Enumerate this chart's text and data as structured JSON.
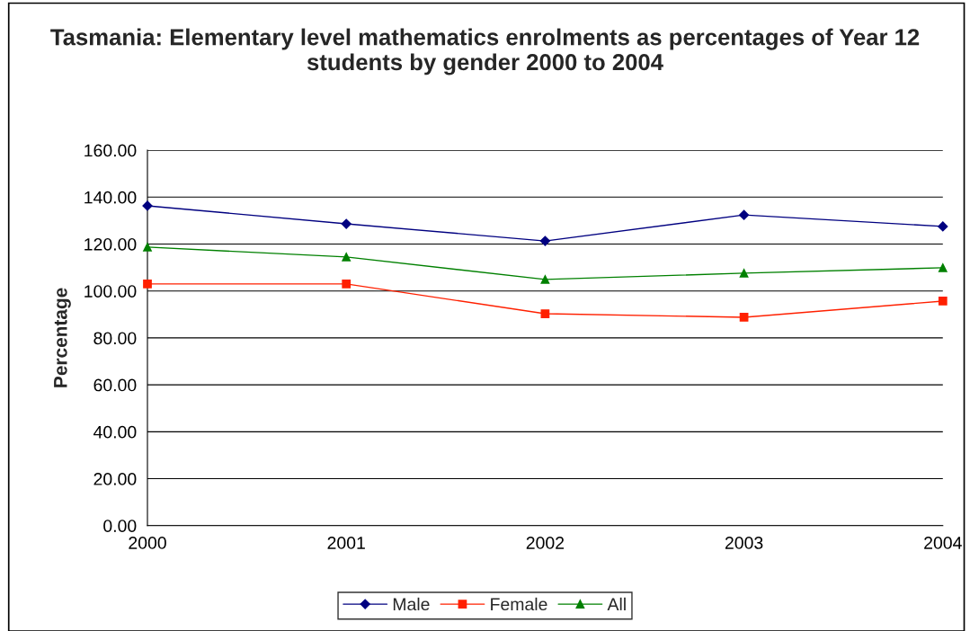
{
  "chart_data": {
    "type": "line",
    "title": "Tasmania: Elementary level mathematics enrolments as percentages of Year 12 students by gender 2000 to 2004",
    "ylabel": "Percentage",
    "categories": [
      "2000",
      "2001",
      "2002",
      "2003",
      "2004"
    ],
    "series": [
      {
        "name": "Male",
        "color": "#000080",
        "marker": "diamond",
        "values": [
          136.3,
          128.6,
          121.3,
          132.4,
          127.5
        ]
      },
      {
        "name": "Female",
        "color": "#ff2000",
        "marker": "square",
        "values": [
          103.0,
          103.0,
          90.3,
          88.8,
          95.7
        ]
      },
      {
        "name": "All",
        "color": "#008000",
        "marker": "triangle",
        "values": [
          118.7,
          114.5,
          104.9,
          107.6,
          109.9
        ]
      }
    ],
    "ylim": [
      0,
      160
    ],
    "yticks": [
      {
        "value": 0,
        "label": "0.00"
      },
      {
        "value": 20,
        "label": "20.00"
      },
      {
        "value": 40,
        "label": "40.00"
      },
      {
        "value": 60,
        "label": "60.00"
      },
      {
        "value": 80,
        "label": "80.00"
      },
      {
        "value": 100,
        "label": "100.00"
      },
      {
        "value": 120,
        "label": "120.00"
      },
      {
        "value": 140,
        "label": "140.00"
      },
      {
        "value": 160,
        "label": "160.00"
      }
    ],
    "grid": "y",
    "legend": "bottom",
    "line_style": "solid"
  }
}
